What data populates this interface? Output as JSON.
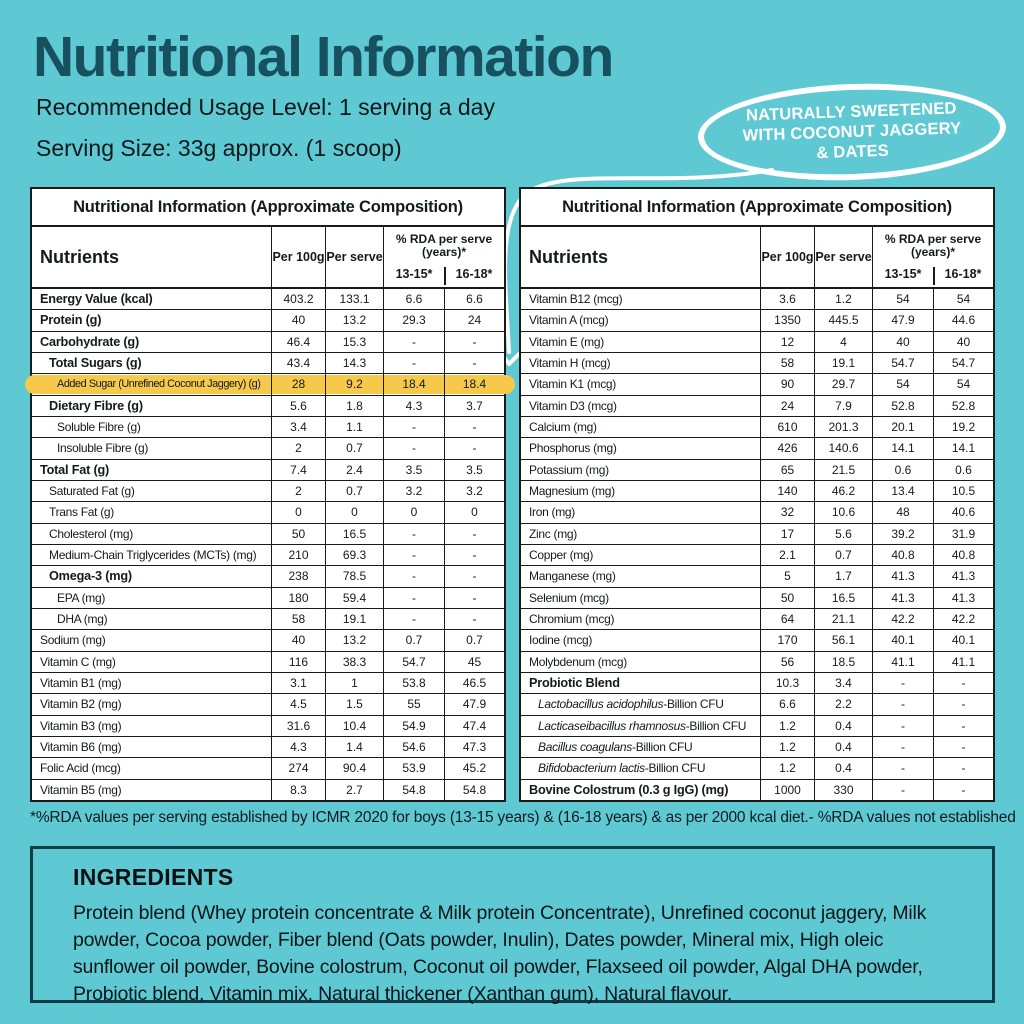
{
  "page": {
    "title": "Nutritional Information",
    "usage_line": "Recommended Usage Level: 1 serving a day",
    "serving_line": "Serving Size: 33g approx. (1 scoop)"
  },
  "badge": {
    "lines": [
      "NATURALLY SWEETENED",
      "WITH COCONUT JAGGERY",
      "& DATES"
    ]
  },
  "colors": {
    "background": "#5FC9D3",
    "title": "#17505E",
    "highlight": "#F6C94B",
    "table_border": "#1A1A1A",
    "badge": "#FFFFFF",
    "ingredients_border": "#123D48"
  },
  "tables": [
    {
      "title": "Nutritional Information (Approximate Composition)",
      "headers": {
        "nutrients": "Nutrients",
        "per100": "Per 100g",
        "perServe": "Per serve",
        "rda": "% RDA per serve (years)*",
        "age1": "13-15*",
        "age2": "16-18*"
      },
      "rows": [
        {
          "name": "Energy Value (kcal)",
          "values": [
            "403.2",
            "133.1",
            "6.6",
            "6.6"
          ],
          "bold": true,
          "indent": 0
        },
        {
          "name": "Protein (g)",
          "values": [
            "40",
            "13.2",
            "29.3",
            "24"
          ],
          "bold": true,
          "indent": 0
        },
        {
          "name": "Carbohydrate (g)",
          "values": [
            "46.4",
            "15.3",
            "-",
            "-"
          ],
          "bold": true,
          "indent": 0
        },
        {
          "name": "Total Sugars (g)",
          "values": [
            "43.4",
            "14.3",
            "-",
            "-"
          ],
          "bold": true,
          "indent": 1
        },
        {
          "name": "Added Sugar (Unrefined Coconut Jaggery) (g)",
          "values": [
            "28",
            "9.2",
            "18.4",
            "18.4"
          ],
          "indent": 2,
          "highlight": true
        },
        {
          "name": "Dietary Fibre (g)",
          "values": [
            "5.6",
            "1.8",
            "4.3",
            "3.7"
          ],
          "bold": true,
          "indent": 1
        },
        {
          "name": "Soluble Fibre (g)",
          "values": [
            "3.4",
            "1.1",
            "-",
            "-"
          ],
          "indent": 2
        },
        {
          "name": "Insoluble Fibre (g)",
          "values": [
            "2",
            "0.7",
            "-",
            "-"
          ],
          "indent": 2
        },
        {
          "name": "Total Fat (g)",
          "values": [
            "7.4",
            "2.4",
            "3.5",
            "3.5"
          ],
          "bold": true,
          "indent": 0
        },
        {
          "name": "Saturated Fat (g)",
          "values": [
            "2",
            "0.7",
            "3.2",
            "3.2"
          ],
          "indent": 1
        },
        {
          "name": "Trans Fat (g)",
          "values": [
            "0",
            "0",
            "0",
            "0"
          ],
          "indent": 1
        },
        {
          "name": "Cholesterol (mg)",
          "values": [
            "50",
            "16.5",
            "-",
            "-"
          ],
          "indent": 1
        },
        {
          "name": "Medium-Chain Triglycerides (MCTs) (mg)",
          "values": [
            "210",
            "69.3",
            "-",
            "-"
          ],
          "indent": 1
        },
        {
          "name": "Omega-3 (mg)",
          "values": [
            "238",
            "78.5",
            "-",
            "-"
          ],
          "bold": true,
          "indent": 1
        },
        {
          "name": "EPA (mg)",
          "values": [
            "180",
            "59.4",
            "-",
            "-"
          ],
          "indent": 2
        },
        {
          "name": "DHA (mg)",
          "values": [
            "58",
            "19.1",
            "-",
            "-"
          ],
          "indent": 2
        },
        {
          "name": "Sodium (mg)",
          "values": [
            "40",
            "13.2",
            "0.7",
            "0.7"
          ],
          "indent": 0
        },
        {
          "name": "Vitamin C (mg)",
          "values": [
            "116",
            "38.3",
            "54.7",
            "45"
          ],
          "indent": 0
        },
        {
          "name": "Vitamin B1 (mg)",
          "values": [
            "3.1",
            "1",
            "53.8",
            "46.5"
          ],
          "indent": 0
        },
        {
          "name": "Vitamin B2 (mg)",
          "values": [
            "4.5",
            "1.5",
            "55",
            "47.9"
          ],
          "indent": 0
        },
        {
          "name": "Vitamin B3 (mg)",
          "values": [
            "31.6",
            "10.4",
            "54.9",
            "47.4"
          ],
          "indent": 0
        },
        {
          "name": "Vitamin B6 (mg)",
          "values": [
            "4.3",
            "1.4",
            "54.6",
            "47.3"
          ],
          "indent": 0
        },
        {
          "name": "Folic Acid (mcg)",
          "values": [
            "274",
            "90.4",
            "53.9",
            "45.2"
          ],
          "indent": 0
        },
        {
          "name": "Vitamin B5 (mg)",
          "values": [
            "8.3",
            "2.7",
            "54.8",
            "54.8"
          ],
          "indent": 0
        }
      ]
    },
    {
      "title": "Nutritional Information (Approximate Composition)",
      "headers": {
        "nutrients": "Nutrients",
        "per100": "Per 100g",
        "perServe": "Per serve",
        "rda": "% RDA per serve (years)*",
        "age1": "13-15*",
        "age2": "16-18*"
      },
      "rows": [
        {
          "name": "Vitamin B12 (mcg)",
          "values": [
            "3.6",
            "1.2",
            "54",
            "54"
          ],
          "indent": 0
        },
        {
          "name": "Vitamin A (mcg)",
          "values": [
            "1350",
            "445.5",
            "47.9",
            "44.6"
          ],
          "indent": 0
        },
        {
          "name": "Vitamin E (mg)",
          "values": [
            "12",
            "4",
            "40",
            "40"
          ],
          "indent": 0
        },
        {
          "name": "Vitamin H (mcg)",
          "values": [
            "58",
            "19.1",
            "54.7",
            "54.7"
          ],
          "indent": 0
        },
        {
          "name": "Vitamin K1 (mcg)",
          "values": [
            "90",
            "29.7",
            "54",
            "54"
          ],
          "indent": 0
        },
        {
          "name": "Vitamin D3 (mcg)",
          "values": [
            "24",
            "7.9",
            "52.8",
            "52.8"
          ],
          "indent": 0
        },
        {
          "name": "Calcium (mg)",
          "values": [
            "610",
            "201.3",
            "20.1",
            "19.2"
          ],
          "indent": 0
        },
        {
          "name": "Phosphorus (mg)",
          "values": [
            "426",
            "140.6",
            "14.1",
            "14.1"
          ],
          "indent": 0
        },
        {
          "name": "Potassium (mg)",
          "values": [
            "65",
            "21.5",
            "0.6",
            "0.6"
          ],
          "indent": 0
        },
        {
          "name": "Magnesium (mg)",
          "values": [
            "140",
            "46.2",
            "13.4",
            "10.5"
          ],
          "indent": 0
        },
        {
          "name": "Iron (mg)",
          "values": [
            "32",
            "10.6",
            "48",
            "40.6"
          ],
          "indent": 0
        },
        {
          "name": "Zinc (mg)",
          "values": [
            "17",
            "5.6",
            "39.2",
            "31.9"
          ],
          "indent": 0
        },
        {
          "name": "Copper (mg)",
          "values": [
            "2.1",
            "0.7",
            "40.8",
            "40.8"
          ],
          "indent": 0
        },
        {
          "name": "Manganese (mg)",
          "values": [
            "5",
            "1.7",
            "41.3",
            "41.3"
          ],
          "indent": 0
        },
        {
          "name": "Selenium (mcg)",
          "values": [
            "50",
            "16.5",
            "41.3",
            "41.3"
          ],
          "indent": 0
        },
        {
          "name": "Chromium (mcg)",
          "values": [
            "64",
            "21.1",
            "42.2",
            "42.2"
          ],
          "indent": 0
        },
        {
          "name": "Iodine (mcg)",
          "values": [
            "170",
            "56.1",
            "40.1",
            "40.1"
          ],
          "indent": 0
        },
        {
          "name": "Molybdenum (mcg)",
          "values": [
            "56",
            "18.5",
            "41.1",
            "41.1"
          ],
          "indent": 0
        },
        {
          "name": "Probiotic Blend",
          "values": [
            "10.3",
            "3.4",
            "-",
            "-"
          ],
          "bold": true,
          "indent": 0
        },
        {
          "name_italic": "Lactobacillus acidophilus",
          "name_rest": "-Billion CFU",
          "values": [
            "6.6",
            "2.2",
            "-",
            "-"
          ],
          "indent": 1
        },
        {
          "name_italic": "Lacticaseibacillus rhamnosus",
          "name_rest": "-Billion CFU",
          "values": [
            "1.2",
            "0.4",
            "-",
            "-"
          ],
          "indent": 1
        },
        {
          "name_italic": "Bacillus coagulans",
          "name_rest": "-Billion CFU",
          "values": [
            "1.2",
            "0.4",
            "-",
            "-"
          ],
          "indent": 1
        },
        {
          "name_italic": "Bifidobacterium lactis",
          "name_rest": "-Billion CFU",
          "values": [
            "1.2",
            "0.4",
            "-",
            "-"
          ],
          "indent": 1
        },
        {
          "name": "Bovine Colostrum (0.3 g IgG) (mg)",
          "values": [
            "1000",
            "330",
            "-",
            "-"
          ],
          "bold": true,
          "indent": 0
        }
      ]
    }
  ],
  "footnote": {
    "left": "*%RDA values per serving established by ICMR 2020 for boys (13-15 years) & (16-18 years) & as per 2000 kcal diet.",
    "right": "- %RDA values not established"
  },
  "ingredients": {
    "title": "INGREDIENTS",
    "text": "Protein blend (Whey protein concentrate & Milk protein Concentrate), Unrefined coconut jaggery, Milk powder, Cocoa powder, Fiber blend (Oats powder, Inulin), Dates powder, Mineral mix, High oleic sunflower oil powder, Bovine colostrum, Coconut oil powder, Flaxseed oil powder, Algal DHA powder, Probiotic blend, Vitamin mix, Natural thickener (Xanthan gum), Natural flavour."
  }
}
